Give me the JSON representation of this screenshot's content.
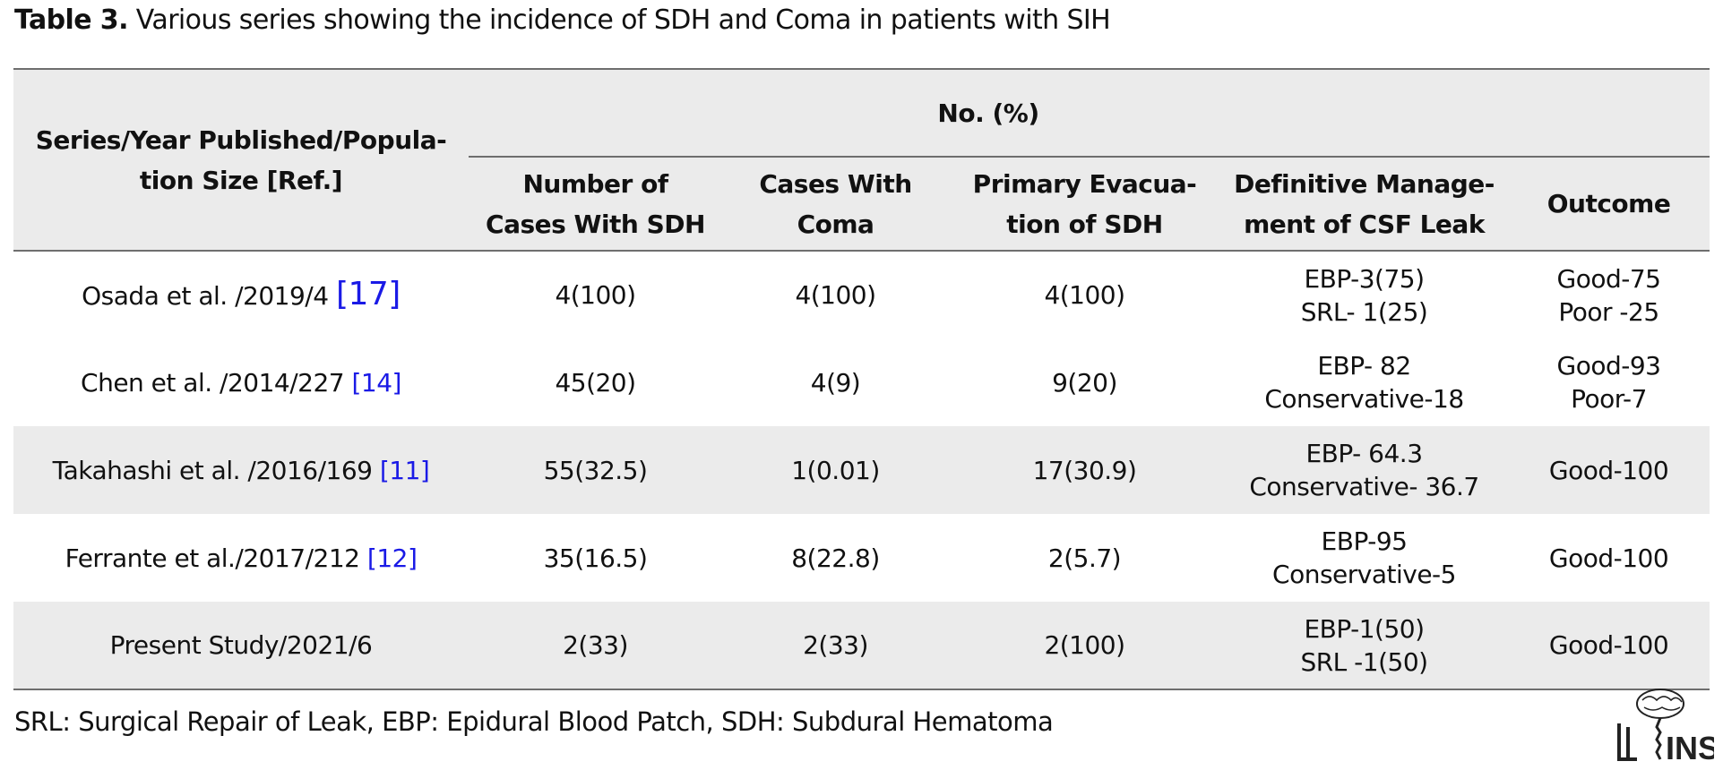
{
  "caption": {
    "label": "Table 3.",
    "text": " Various series showing the incidence of SDH and Coma in patients with SIH"
  },
  "table": {
    "header": {
      "series": [
        "Series/Year Published/Popula-",
        "tion Size [Ref.]"
      ],
      "group": "No. (%)",
      "sdh": [
        "Number of",
        "Cases With SDH"
      ],
      "coma": [
        "Cases With",
        "Coma"
      ],
      "evacuation": [
        "Primary Evacua-",
        "tion of SDH"
      ],
      "management": [
        "Definitive Manage-",
        "ment of CSF Leak"
      ],
      "outcome": "Outcome"
    },
    "rows": [
      {
        "series": "Osada et al. /2019/4 ",
        "ref": "[17]",
        "sdh": "4(100)",
        "coma": "4(100)",
        "evacuation": "4(100)",
        "management": [
          "EBP-3(75)",
          "SRL- 1(25)"
        ],
        "outcome": [
          "Good-75",
          "Poor -25"
        ]
      },
      {
        "series": "Chen et al. /2014/227 ",
        "ref": "[14]",
        "sdh": "45(20)",
        "coma": "4(9)",
        "evacuation": "9(20)",
        "management": [
          "EBP- 82",
          "Conservative-18"
        ],
        "outcome": [
          "Good-93",
          "Poor-7"
        ]
      },
      {
        "series": "Takahashi et al. /2016/169 ",
        "ref": "[11]",
        "sdh": "55(32.5)",
        "coma": "1(0.01)",
        "evacuation": "17(30.9)",
        "management": [
          "EBP- 64.3",
          "Conservative- 36.7"
        ],
        "outcome": [
          "Good-100"
        ]
      },
      {
        "series": "Ferrante et al./2017/212 ",
        "ref": "[12]",
        "sdh": "35(16.5)",
        "coma": "8(22.8)",
        "evacuation": "2(5.7)",
        "management": [
          "EBP-95",
          "Conservative-5"
        ],
        "outcome": [
          "Good-100"
        ]
      },
      {
        "series": "Present Study/2021/6",
        "ref": "",
        "sdh": "2(33)",
        "coma": "2(33)",
        "evacuation": "2(100)",
        "management": [
          "EBP-1(50)",
          "SRL -1(50)"
        ],
        "outcome": [
          "Good-100"
        ]
      }
    ]
  },
  "footnote": "SRL: Surgical Repair of Leak, EBP: Epidural Blood Patch, SDH: Subdural Hematoma",
  "logo": {
    "icon": "brain-spine-logo-icon",
    "text": "INS"
  },
  "colors": {
    "header_bg": "#ebebeb",
    "shade_bg": "#ebebeb",
    "rule": "#6e6e6e",
    "ref_link": "#1a1ae6"
  }
}
